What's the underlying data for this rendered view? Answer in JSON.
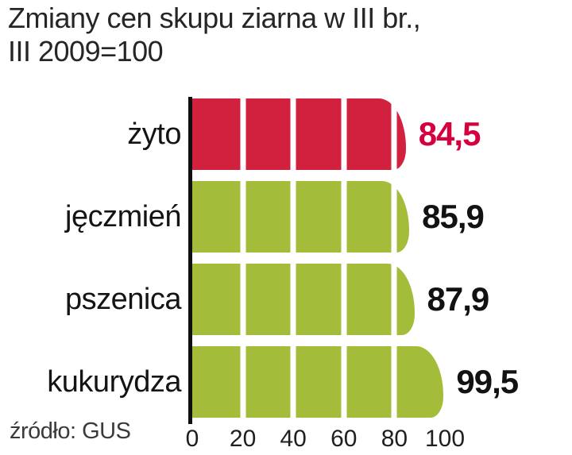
{
  "header": {
    "title_line1": "Zmiany cen skupu ziarna w III br.,",
    "title_line2": "III 2009=100"
  },
  "footer": {
    "source": "źródło: GUS"
  },
  "chart_data": {
    "type": "bar",
    "orientation": "horizontal",
    "title": "Zmiany cen skupu ziarna w III br., III 2009=100",
    "categories": [
      "żyto",
      "jęczmień",
      "pszenica",
      "kukurydza"
    ],
    "values": [
      84.5,
      85.9,
      87.9,
      99.5
    ],
    "value_labels": [
      "84,5",
      "85,9",
      "87,9",
      "99,5"
    ],
    "bar_colors": [
      "#d2203f",
      "#a3bd3a",
      "#a3bd3a",
      "#a3bd3a"
    ],
    "value_label_colors": [
      "#d4013f",
      "#121212",
      "#121212",
      "#121212"
    ],
    "xlim": [
      0,
      100
    ],
    "x_ticks": [
      0,
      20,
      40,
      60,
      80,
      100
    ],
    "gridlines": [
      20,
      40,
      60,
      80
    ],
    "grid_color": "#ffffff",
    "axis_color": "#0f0f0f",
    "legend": "none",
    "source": "źródło: GUS"
  }
}
